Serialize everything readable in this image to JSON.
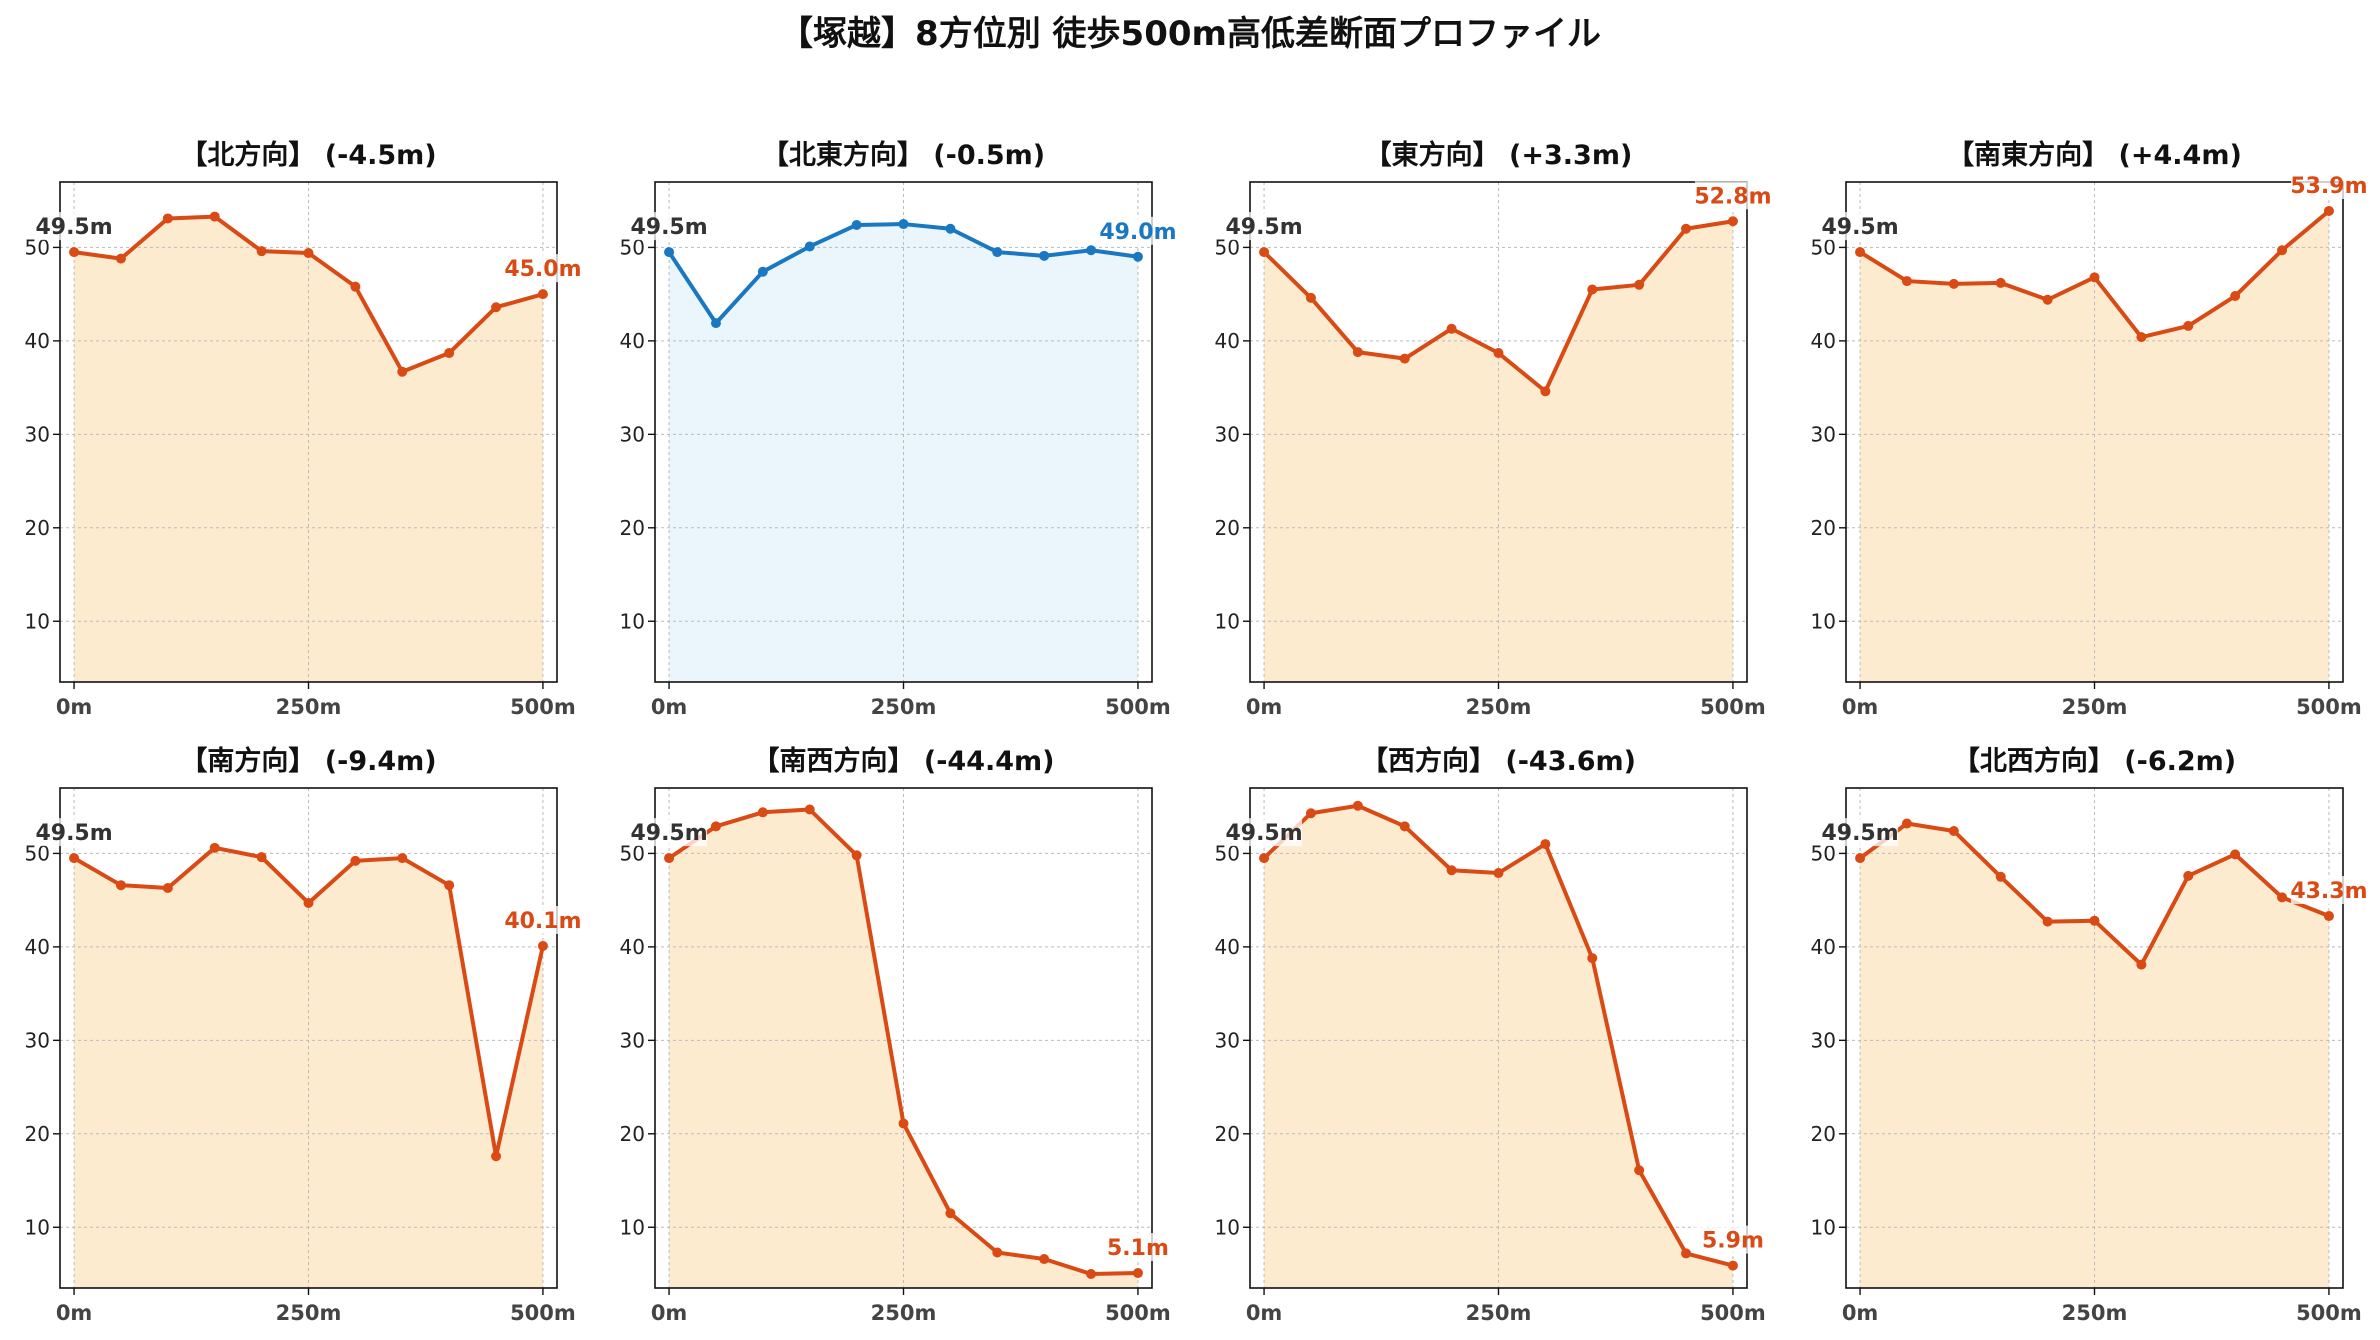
{
  "title": "【塚越】8方位別 徒歩500m高低差断面プロファイル",
  "colors": {
    "down": "#d94a14",
    "down_fill": "#fdebd0",
    "flat": "#1a78c2",
    "flat_fill": "#eaf6fb",
    "start_label": "#333333",
    "grid": "#bbbbbb"
  },
  "chart_data": [
    {
      "type": "area",
      "title": "【北方向】 (-4.5m)",
      "x": [
        0,
        50,
        100,
        150,
        200,
        250,
        300,
        350,
        400,
        450,
        500
      ],
      "y": [
        49.5,
        48.8,
        53.1,
        53.3,
        49.6,
        49.4,
        45.8,
        36.7,
        38.7,
        43.6,
        45.0
      ],
      "xticks": [
        "0m",
        "250m",
        "500m"
      ],
      "yticks": [
        10,
        20,
        30,
        40,
        50
      ],
      "ylim": [
        3.5,
        57
      ],
      "start_label": "49.5m",
      "end_label": "45.0m",
      "style": "down",
      "grid": true
    },
    {
      "type": "area",
      "title": "【北東方向】 (-0.5m)",
      "x": [
        0,
        50,
        100,
        150,
        200,
        250,
        300,
        350,
        400,
        450,
        500
      ],
      "y": [
        49.5,
        41.9,
        47.4,
        50.1,
        52.4,
        52.5,
        52.0,
        49.5,
        49.1,
        49.7,
        49.0
      ],
      "xticks": [
        "0m",
        "250m",
        "500m"
      ],
      "yticks": [
        10,
        20,
        30,
        40,
        50
      ],
      "ylim": [
        3.5,
        57
      ],
      "start_label": "49.5m",
      "end_label": "49.0m",
      "style": "flat",
      "grid": true
    },
    {
      "type": "area",
      "title": "【東方向】 (+3.3m)",
      "x": [
        0,
        50,
        100,
        150,
        200,
        250,
        300,
        350,
        400,
        450,
        500
      ],
      "y": [
        49.5,
        44.6,
        38.8,
        38.1,
        41.3,
        38.7,
        34.6,
        45.5,
        46.0,
        52.0,
        52.8
      ],
      "xticks": [
        "0m",
        "250m",
        "500m"
      ],
      "yticks": [
        10,
        20,
        30,
        40,
        50
      ],
      "ylim": [
        3.5,
        57
      ],
      "start_label": "49.5m",
      "end_label": "52.8m",
      "style": "down",
      "grid": true
    },
    {
      "type": "area",
      "title": "【南東方向】 (+4.4m)",
      "x": [
        0,
        50,
        100,
        150,
        200,
        250,
        300,
        350,
        400,
        450,
        500
      ],
      "y": [
        49.5,
        46.4,
        46.1,
        46.2,
        44.4,
        46.8,
        40.4,
        41.6,
        44.8,
        49.7,
        53.9
      ],
      "xticks": [
        "0m",
        "250m",
        "500m"
      ],
      "yticks": [
        10,
        20,
        30,
        40,
        50
      ],
      "ylim": [
        3.5,
        57
      ],
      "start_label": "49.5m",
      "end_label": "53.9m",
      "style": "down",
      "grid": true
    },
    {
      "type": "area",
      "title": "【南方向】 (-9.4m)",
      "x": [
        0,
        50,
        100,
        150,
        200,
        250,
        300,
        350,
        400,
        450,
        500
      ],
      "y": [
        49.5,
        46.6,
        46.3,
        50.6,
        49.6,
        44.7,
        49.2,
        49.5,
        46.6,
        17.6,
        40.1
      ],
      "xticks": [
        "0m",
        "250m",
        "500m"
      ],
      "yticks": [
        10,
        20,
        30,
        40,
        50
      ],
      "ylim": [
        3.5,
        57
      ],
      "start_label": "49.5m",
      "end_label": "40.1m",
      "style": "down",
      "grid": true
    },
    {
      "type": "area",
      "title": "【南西方向】 (-44.4m)",
      "x": [
        0,
        50,
        100,
        150,
        200,
        250,
        300,
        350,
        400,
        450,
        500
      ],
      "y": [
        49.5,
        52.9,
        54.4,
        54.7,
        49.8,
        21.1,
        11.5,
        7.3,
        6.6,
        5.0,
        5.1
      ],
      "xticks": [
        "0m",
        "250m",
        "500m"
      ],
      "yticks": [
        10,
        20,
        30,
        40,
        50
      ],
      "ylim": [
        3.5,
        57
      ],
      "start_label": "49.5m",
      "end_label": "5.1m",
      "style": "down",
      "grid": true
    },
    {
      "type": "area",
      "title": "【西方向】 (-43.6m)",
      "x": [
        0,
        50,
        100,
        150,
        200,
        250,
        300,
        350,
        400,
        450,
        500
      ],
      "y": [
        49.5,
        54.3,
        55.1,
        52.9,
        48.2,
        47.9,
        51.0,
        38.8,
        16.1,
        7.2,
        5.9
      ],
      "xticks": [
        "0m",
        "250m",
        "500m"
      ],
      "yticks": [
        10,
        20,
        30,
        40,
        50
      ],
      "ylim": [
        3.5,
        57
      ],
      "start_label": "49.5m",
      "end_label": "5.9m",
      "style": "down",
      "grid": true
    },
    {
      "type": "area",
      "title": "【北西方向】 (-6.2m)",
      "x": [
        0,
        50,
        100,
        150,
        200,
        250,
        300,
        350,
        400,
        450,
        500
      ],
      "y": [
        49.5,
        53.2,
        52.4,
        47.5,
        42.7,
        42.8,
        38.1,
        47.6,
        49.9,
        45.3,
        43.3
      ],
      "xticks": [
        "0m",
        "250m",
        "500m"
      ],
      "yticks": [
        10,
        20,
        30,
        40,
        50
      ],
      "ylim": [
        3.5,
        57
      ],
      "start_label": "49.5m",
      "end_label": "43.3m",
      "style": "down",
      "grid": true
    }
  ]
}
